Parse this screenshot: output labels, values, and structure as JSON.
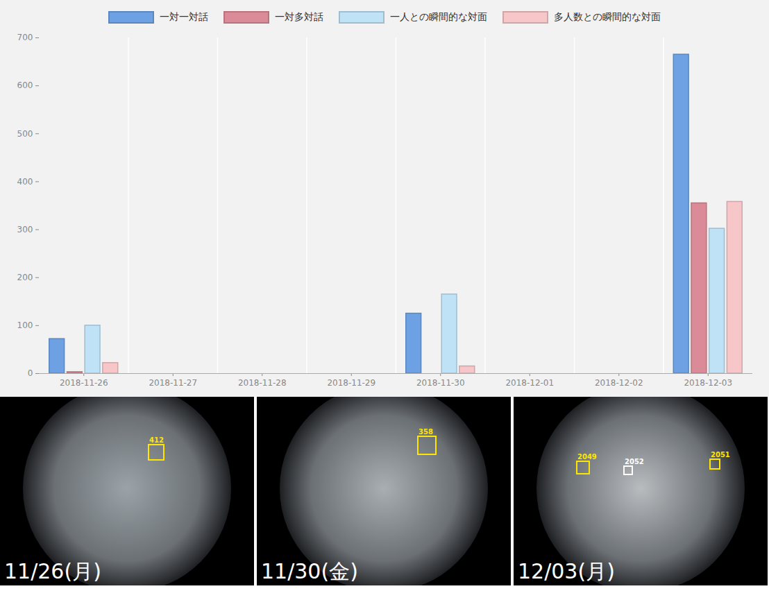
{
  "chart_data": {
    "type": "bar",
    "categories": [
      "2018-11-26",
      "2018-11-27",
      "2018-11-28",
      "2018-11-29",
      "2018-11-30",
      "2018-12-01",
      "2018-12-02",
      "2018-12-03"
    ],
    "series": [
      {
        "name": "一対一対話",
        "color": "#6ea1e3",
        "values": [
          72,
          0,
          0,
          0,
          125,
          0,
          0,
          665
        ]
      },
      {
        "name": "一対多対話",
        "color": "#db8b98",
        "values": [
          3,
          0,
          0,
          0,
          0,
          0,
          0,
          355
        ]
      },
      {
        "name": "一人との瞬間的な対面",
        "color": "#bfe2f7",
        "values": [
          100,
          0,
          0,
          0,
          165,
          0,
          0,
          302
        ]
      },
      {
        "name": "多人数との瞬間的な対面",
        "color": "#f7c6c9",
        "values": [
          22,
          0,
          0,
          0,
          15,
          0,
          0,
          358
        ]
      }
    ],
    "ylim": [
      0,
      700
    ],
    "yticks": [
      0,
      100,
      200,
      300,
      400,
      500,
      600,
      700
    ],
    "grid": true,
    "legend": "top"
  },
  "photos": [
    {
      "caption": "11/26(月)",
      "faces": [
        "412"
      ]
    },
    {
      "caption": "11/30(金)",
      "faces": [
        "358"
      ]
    },
    {
      "caption": "12/03(月)",
      "faces": [
        "2049",
        "2052",
        "2051"
      ]
    }
  ]
}
